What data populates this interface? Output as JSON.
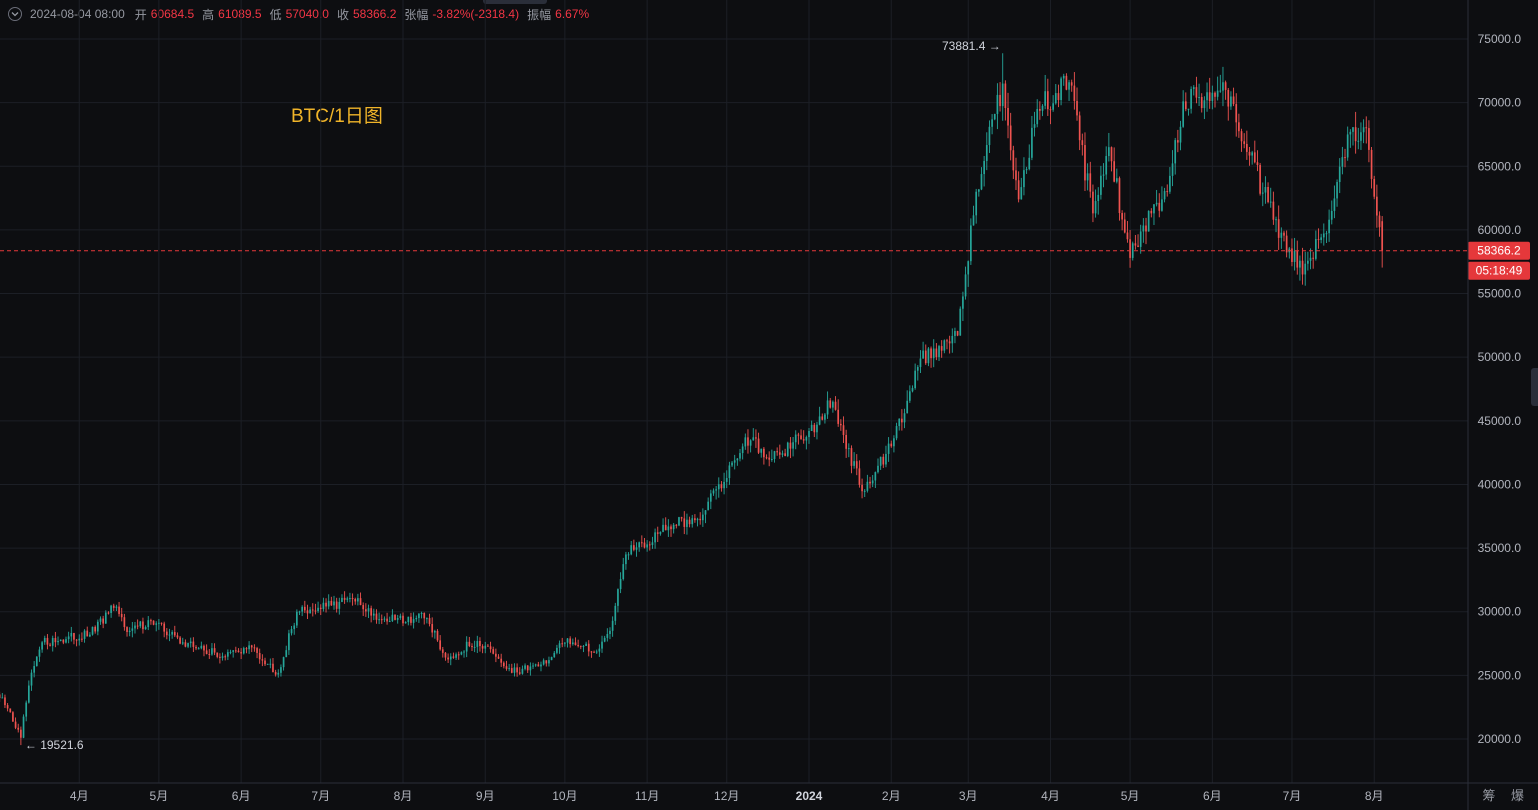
{
  "infobar": {
    "date": "2024-08-04 08:00",
    "open_label": "开",
    "open": "60684.5",
    "high_label": "高",
    "high": "61089.5",
    "low_label": "低",
    "low": "57040.0",
    "close_label": "收",
    "close": "58366.2",
    "change_label": "张幅",
    "change": "-3.82%(-2318.4)",
    "amplitude_label": "振幅",
    "amplitude": "6.67%"
  },
  "title_label": "BTC/1日图",
  "brand": "筹 爆",
  "price_badge": "58366.2",
  "countdown_badge": "05:18:49",
  "colors": {
    "background": "#0d0e11",
    "grid": "#1c1f26",
    "up": "#26a69a",
    "down": "#ef5350",
    "badge": "#e5383b",
    "title": "#f0b429",
    "axis_text": "#b2b5be"
  },
  "chart_data": {
    "type": "candlestick",
    "title": "BTC/1日图",
    "y_axis": {
      "min": 19000,
      "max": 76000,
      "position": "right",
      "ticks": [
        20000,
        25000,
        30000,
        35000,
        40000,
        45000,
        50000,
        55000,
        60000,
        65000,
        70000,
        75000
      ],
      "tick_labels": [
        "20000.0",
        "25000.0",
        "30000.0",
        "35000.0",
        "40000.0",
        "45000.0",
        "50000.0",
        "55000.0",
        "60000.0",
        "65000.0",
        "70000.0",
        "75000.0"
      ]
    },
    "x_axis": {
      "start": "2023-03-01",
      "end": "2024-08-28",
      "ticks": [
        "2023-04-01",
        "2023-05-01",
        "2023-06-01",
        "2023-07-01",
        "2023-08-01",
        "2023-09-01",
        "2023-10-01",
        "2023-11-01",
        "2023-12-01",
        "2024-01-01",
        "2024-02-01",
        "2024-03-01",
        "2024-04-01",
        "2024-05-01",
        "2024-06-01",
        "2024-07-01",
        "2024-08-01"
      ],
      "tick_labels": [
        "4月",
        "5月",
        "6月",
        "7月",
        "8月",
        "9月",
        "10月",
        "11月",
        "12月",
        "2024",
        "2月",
        "3月",
        "4月",
        "5月",
        "6月",
        "7月",
        "8月"
      ]
    },
    "grid": true,
    "price_path": [
      [
        "2023-03-01",
        23500
      ],
      [
        "2023-03-05",
        22400
      ],
      [
        "2023-03-10",
        20100
      ],
      [
        "2023-03-13",
        24200
      ],
      [
        "2023-03-18",
        27600
      ],
      [
        "2023-03-25",
        27800
      ],
      [
        "2023-04-05",
        28200
      ],
      [
        "2023-04-14",
        30300
      ],
      [
        "2023-04-20",
        28500
      ],
      [
        "2023-04-28",
        29300
      ],
      [
        "2023-05-10",
        27600
      ],
      [
        "2023-05-25",
        26500
      ],
      [
        "2023-06-05",
        27200
      ],
      [
        "2023-06-15",
        25200
      ],
      [
        "2023-06-22",
        30000
      ],
      [
        "2023-07-05",
        30500
      ],
      [
        "2023-07-13",
        31000
      ],
      [
        "2023-07-24",
        29400
      ],
      [
        "2023-08-10",
        29500
      ],
      [
        "2023-08-17",
        26400
      ],
      [
        "2023-08-29",
        27700
      ],
      [
        "2023-09-11",
        25200
      ],
      [
        "2023-09-25",
        26200
      ],
      [
        "2023-10-02",
        27900
      ],
      [
        "2023-10-12",
        26800
      ],
      [
        "2023-10-18",
        28500
      ],
      [
        "2023-10-24",
        34500
      ],
      [
        "2023-11-09",
        36700
      ],
      [
        "2023-11-20",
        37300
      ],
      [
        "2023-12-04",
        41900
      ],
      [
        "2023-12-08",
        43700
      ],
      [
        "2023-12-18",
        42000
      ],
      [
        "2024-01-01",
        44200
      ],
      [
        "2024-01-10",
        46500
      ],
      [
        "2024-01-15",
        42800
      ],
      [
        "2024-01-22",
        39500
      ],
      [
        "2024-02-01",
        43000
      ],
      [
        "2024-02-12",
        49900
      ],
      [
        "2024-02-26",
        51700
      ],
      [
        "2024-03-04",
        63000
      ],
      [
        "2024-03-14",
        71500
      ],
      [
        "2024-03-20",
        62400
      ],
      [
        "2024-03-27",
        69500
      ],
      [
        "2024-04-08",
        71600
      ],
      [
        "2024-04-17",
        61300
      ],
      [
        "2024-04-23",
        66500
      ],
      [
        "2024-05-01",
        57800
      ],
      [
        "2024-05-09",
        61300
      ],
      [
        "2024-05-15",
        63000
      ],
      [
        "2024-05-21",
        70100
      ],
      [
        "2024-06-06",
        71000
      ],
      [
        "2024-06-24",
        60800
      ],
      [
        "2024-07-05",
        56500
      ],
      [
        "2024-07-15",
        60800
      ],
      [
        "2024-07-22",
        67500
      ],
      [
        "2024-07-29",
        68000
      ],
      [
        "2024-08-04",
        58366.2
      ]
    ],
    "extremes": {
      "high": {
        "date": "2024-03-14",
        "value": 73881.4,
        "label": "73881.4"
      },
      "low": {
        "date": "2023-03-10",
        "value": 19521.6,
        "label": "19521.6"
      }
    },
    "current_price": 58366.2,
    "last_candle": {
      "date": "2024-08-04",
      "open": 60684.5,
      "high": 61089.5,
      "low": 57040.0,
      "close": 58366.2
    }
  }
}
